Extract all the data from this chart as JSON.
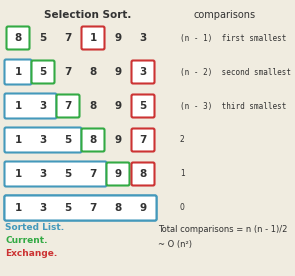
{
  "title": "Selection Sort.",
  "comparisons_title": "comparisons",
  "rows": [
    {
      "numbers": [
        8,
        5,
        7,
        1,
        9,
        3
      ],
      "sorted_count": 0,
      "current_idx": 0,
      "exchange_idx": 3
    },
    {
      "numbers": [
        1,
        5,
        7,
        8,
        9,
        3
      ],
      "sorted_count": 1,
      "current_idx": 1,
      "exchange_idx": 5
    },
    {
      "numbers": [
        1,
        3,
        7,
        8,
        9,
        5
      ],
      "sorted_count": 2,
      "current_idx": 2,
      "exchange_idx": 5
    },
    {
      "numbers": [
        1,
        3,
        5,
        8,
        9,
        7
      ],
      "sorted_count": 3,
      "current_idx": 3,
      "exchange_idx": 5
    },
    {
      "numbers": [
        1,
        3,
        5,
        7,
        9,
        8
      ],
      "sorted_count": 4,
      "current_idx": 4,
      "exchange_idx": 5
    },
    {
      "numbers": [
        1,
        3,
        5,
        7,
        8,
        9
      ],
      "sorted_count": 6,
      "current_idx": -1,
      "exchange_idx": -1
    }
  ],
  "comparison_labels": [
    "(n - 1)  first smallest",
    "(n - 2)  second smallest",
    "(n - 3)  third smallest",
    "2",
    "1",
    "0"
  ],
  "comparison_mono": [
    true,
    true,
    true,
    false,
    false,
    false
  ],
  "legend_sorted": "Sorted List.",
  "legend_current": "Current.",
  "legend_exchange": "Exchange.",
  "formula1": "Total comparisons = n (n - 1)/2",
  "formula2": "~ O (n²)",
  "color_sorted": "#4499bb",
  "color_current": "#33aa44",
  "color_exchange": "#cc3333",
  "color_fg": "#333333",
  "bg_color": "#f0ece0"
}
